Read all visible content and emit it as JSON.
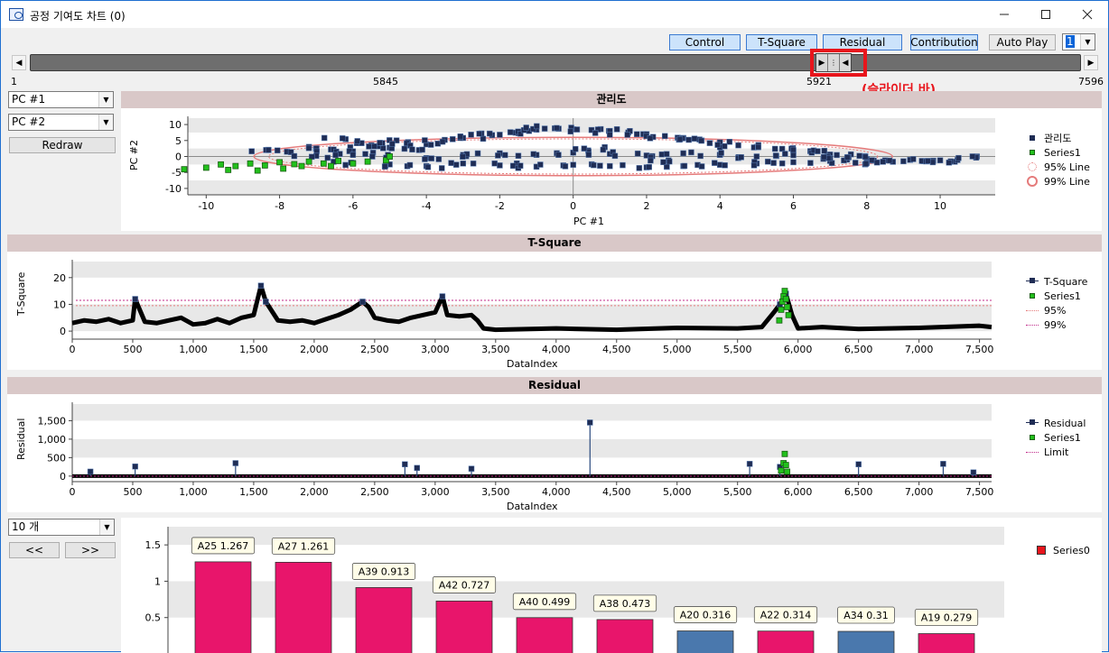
{
  "window": {
    "title": "공정 기여도 차트 (0)"
  },
  "toolbar": {
    "buttons": [
      "Control",
      "T-Square",
      "Residual",
      "Contribution",
      "Auto Play"
    ],
    "page_combo": "1"
  },
  "slider": {
    "start_label": "1",
    "left_label": "5845",
    "right_label": "5921",
    "end_label": "7596",
    "note": "(슬라이더 바)"
  },
  "left_controls": {
    "pc_x": "PC #1",
    "pc_y": "PC #2",
    "redraw": "Redraw",
    "count_combo": "10 개",
    "prev": "<<",
    "next": ">>"
  },
  "panels": {
    "control": {
      "title": "관리도",
      "xlabel": "PC #1",
      "ylabel": "PC #2",
      "legend": [
        "관리도",
        "Series1",
        "95% Line",
        "99% Line"
      ]
    },
    "tsquare": {
      "title": "T-Square",
      "xlabel": "DataIndex",
      "ylabel": "T-Square",
      "legend": [
        "T-Square",
        "Series1",
        "95%",
        "99%"
      ]
    },
    "residual": {
      "title": "Residual",
      "xlabel": "DataIndex",
      "ylabel": "Residual",
      "legend": [
        "Residual",
        "Series1",
        "Limit"
      ]
    },
    "contribution": {
      "legend": [
        "Series0"
      ]
    }
  },
  "colors": {
    "navy": "#1f2d55",
    "green": "#22c01c",
    "pink": "#e8156b",
    "steel": "#4a78ad",
    "limit_red": "#e57b7b",
    "band": "#e8e8e8"
  },
  "chart_data": [
    {
      "type": "scatter",
      "title": "관리도",
      "xlabel": "PC #1",
      "ylabel": "PC #2",
      "xlim": [
        -10.5,
        11.5
      ],
      "ylim": [
        -12,
        12
      ],
      "xticks": [
        -10,
        -8,
        -6,
        -4,
        -2,
        0,
        2,
        4,
        6,
        8,
        10
      ],
      "yticks": [
        10,
        5,
        0,
        -5,
        -10
      ],
      "series": [
        {
          "name": "관리도",
          "cloud": [
            [
              -8.3,
              2
            ],
            [
              -7.8,
              1.5
            ],
            [
              -7.2,
              3
            ],
            [
              -6.6,
              2.2
            ],
            [
              -6,
              1.6
            ],
            [
              -5.5,
              3.5
            ],
            [
              -5,
              2.8
            ],
            [
              -4.5,
              4.5
            ],
            [
              -4,
              3.8
            ],
            [
              -3.5,
              5.2
            ],
            [
              -3,
              5.8
            ],
            [
              -2.5,
              7.2
            ],
            [
              -2,
              6.8
            ],
            [
              -1.5,
              7.8
            ],
            [
              -1,
              8.4
            ],
            [
              -0.5,
              8.8
            ],
            [
              0,
              8.5
            ],
            [
              0.5,
              8.3
            ],
            [
              1,
              8
            ],
            [
              1.5,
              7.5
            ],
            [
              2,
              7
            ],
            [
              2.5,
              6.4
            ],
            [
              3,
              5.8
            ],
            [
              3.5,
              5
            ],
            [
              4,
              4.4
            ],
            [
              4.5,
              3.5
            ],
            [
              5,
              3
            ],
            [
              5.5,
              2.4
            ],
            [
              6,
              1.8
            ],
            [
              6.5,
              1.2
            ],
            [
              7,
              0.6
            ],
            [
              7.5,
              -0.2
            ],
            [
              8,
              -0.8
            ],
            [
              8.5,
              -1.2
            ],
            [
              9,
              -1.5
            ],
            [
              9.5,
              -1.4
            ],
            [
              10,
              -1.2
            ],
            [
              11,
              0
            ],
            [
              -6,
              -2
            ],
            [
              -5,
              -2.5
            ],
            [
              -4,
              -3
            ],
            [
              -3,
              -2.2
            ],
            [
              -2,
              -2.8
            ],
            [
              -1,
              -3.2
            ],
            [
              0,
              -2.6
            ],
            [
              1,
              -3
            ],
            [
              2,
              -3.4
            ],
            [
              3,
              -3
            ],
            [
              4,
              -2.6
            ],
            [
              5,
              -2.2
            ],
            [
              6,
              -1.8
            ],
            [
              7,
              -1.4
            ],
            [
              8,
              -2
            ],
            [
              -3,
              0.5
            ],
            [
              -2,
              1
            ],
            [
              -1,
              0.5
            ],
            [
              0,
              1.2
            ],
            [
              1,
              0.8
            ],
            [
              2,
              0.3
            ],
            [
              3,
              1
            ],
            [
              4,
              0.5
            ],
            [
              5,
              0
            ],
            [
              6,
              0.4
            ],
            [
              7,
              -0.5
            ],
            [
              -4,
              -0.5
            ],
            [
              -5,
              0
            ],
            [
              -6,
              0.5
            ],
            [
              -7,
              0.2
            ],
            [
              -5.2,
              4.2
            ],
            [
              -6.2,
              5.4
            ],
            [
              0.3,
              2.5
            ],
            [
              9.8,
              -1.8
            ],
            [
              -4.2,
              2
            ],
            [
              2.6,
              -1.2
            ]
          ]
        },
        {
          "name": "Series1",
          "points": [
            [
              -10.6,
              -4
            ],
            [
              -10,
              -3.5
            ],
            [
              -9.6,
              -2.5
            ],
            [
              -9.2,
              -3
            ],
            [
              -8.8,
              -2.2
            ],
            [
              -8.4,
              -2.8
            ],
            [
              -8,
              -1.8
            ],
            [
              -7.6,
              -2.4
            ],
            [
              -7.2,
              -1.6
            ],
            [
              -6.8,
              -2.2
            ],
            [
              -6.4,
              -1.4
            ],
            [
              -6,
              -2.2
            ],
            [
              -5.6,
              -1.6
            ],
            [
              -5.1,
              -1.2
            ],
            [
              -7.9,
              -3.8
            ],
            [
              -8.6,
              -4.4
            ],
            [
              -7.4,
              -3
            ],
            [
              -9.4,
              -4.2
            ],
            [
              -6.6,
              -3
            ],
            [
              -5,
              0
            ]
          ]
        }
      ],
      "ellipse_95": {
        "cx": 0,
        "cy": 0,
        "rx": 8.3,
        "ry": 5.5
      },
      "ellipse_99": {
        "cx": 0,
        "cy": 0,
        "rx": 8.7,
        "ry": 6.0
      }
    },
    {
      "type": "line",
      "title": "T-Square",
      "xlabel": "DataIndex",
      "ylabel": "T-Square",
      "xlim": [
        0,
        7600
      ],
      "ylim": [
        -3,
        26
      ],
      "xticks": [
        0,
        500,
        1000,
        1500,
        2000,
        2500,
        3000,
        3500,
        4000,
        4500,
        5000,
        5500,
        6000,
        6500,
        7000,
        7500
      ],
      "yticks": [
        0,
        10,
        20
      ],
      "limit_95": 9.5,
      "limit_99": 11.5,
      "series": [
        {
          "name": "T-Square",
          "x": [
            0,
            100,
            200,
            300,
            400,
            500,
            520,
            600,
            700,
            800,
            900,
            1000,
            1100,
            1200,
            1300,
            1400,
            1500,
            1560,
            1600,
            1700,
            1800,
            1900,
            2000,
            2100,
            2200,
            2300,
            2400,
            2450,
            2500,
            2600,
            2700,
            2800,
            2900,
            3000,
            3060,
            3100,
            3200,
            3300,
            3350,
            3400,
            3500,
            4000,
            4500,
            4700,
            5000,
            5500,
            5700,
            5800,
            5850,
            5900,
            5950,
            6000,
            6200,
            6500,
            7000,
            7500,
            7600
          ],
          "y": [
            3,
            4,
            3.5,
            4.5,
            3,
            4,
            12,
            3.5,
            3,
            4,
            5,
            2.5,
            3,
            4.5,
            3,
            5,
            6,
            17,
            11,
            4,
            3.5,
            4,
            3,
            4.5,
            6,
            8,
            11,
            9,
            5,
            4,
            3.5,
            5,
            6,
            7,
            13,
            6,
            5.5,
            6,
            4,
            1,
            0.5,
            1,
            0.5,
            0.8,
            1.2,
            1,
            1.5,
            7,
            10,
            14,
            6,
            1,
            1.5,
            0.8,
            1.2,
            2,
            1.5
          ]
        },
        {
          "name": "Series1",
          "x": [
            5845,
            5860,
            5870,
            5880,
            5890,
            5900,
            5910,
            5921
          ],
          "y": [
            4,
            8,
            11,
            13,
            15,
            12,
            9,
            6
          ]
        }
      ]
    },
    {
      "type": "line",
      "title": "Residual",
      "xlabel": "DataIndex",
      "ylabel": "Residual",
      "xlim": [
        0,
        7600
      ],
      "ylim": [
        -150,
        1950
      ],
      "xticks": [
        0,
        500,
        1000,
        1500,
        2000,
        2500,
        3000,
        3500,
        4000,
        4500,
        5000,
        5500,
        6000,
        6500,
        7000,
        7500
      ],
      "yticks": [
        0,
        500,
        1000,
        1500
      ],
      "limit": 0,
      "series": [
        {
          "name": "Residual",
          "spikes": [
            [
              150,
              120
            ],
            [
              520,
              260
            ],
            [
              1350,
              350
            ],
            [
              2750,
              320
            ],
            [
              2850,
              220
            ],
            [
              3300,
              200
            ],
            [
              4280,
              1450
            ],
            [
              5600,
              330
            ],
            [
              5850,
              250
            ],
            [
              6500,
              320
            ],
            [
              7200,
              330
            ],
            [
              7450,
              100
            ]
          ]
        },
        {
          "name": "Series1",
          "points": [
            [
              5860,
              150
            ],
            [
              5880,
              350
            ],
            [
              5890,
              600
            ],
            [
              5900,
              300
            ],
            [
              5910,
              120
            ]
          ]
        }
      ]
    },
    {
      "type": "bar",
      "series": [
        {
          "name": "Series0",
          "categories": [
            "A25",
            "A27",
            "A39",
            "A42",
            "A40",
            "A38",
            "A20",
            "A22",
            "A34",
            "A19"
          ],
          "values": [
            1.267,
            1.261,
            0.913,
            0.727,
            0.499,
            0.473,
            0.316,
            0.314,
            0.31,
            0.279
          ],
          "labels": [
            "A25 1.267",
            "A27 1.261",
            "A39 0.913",
            "A42 0.727",
            "A40 0.499",
            "A38 0.473",
            "A20 0.316",
            "A22 0.314",
            "A34 0.31",
            "A19 0.279"
          ],
          "colors": [
            "#e8156b",
            "#e8156b",
            "#e8156b",
            "#e8156b",
            "#e8156b",
            "#e8156b",
            "#4a78ad",
            "#e8156b",
            "#4a78ad",
            "#e8156b"
          ]
        }
      ],
      "yticks": [
        "1.5",
        "1",
        "0.5"
      ],
      "ylim": [
        0,
        1.75
      ]
    }
  ]
}
